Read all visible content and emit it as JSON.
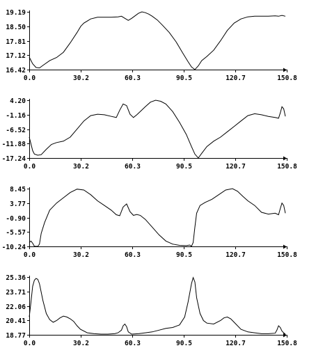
{
  "chart_data": [
    {
      "type": "line",
      "ylim": [
        16.42,
        19.19
      ],
      "y_ticks": [
        "19.19",
        "18.50",
        "17.81",
        "17.12",
        "16.42"
      ],
      "xlim": [
        0,
        150.8
      ],
      "x_ticks": [
        "0.0",
        "30.2",
        "60.3",
        "90.5",
        "120.7",
        "150.8"
      ],
      "colors": {
        "line": "#000000",
        "axis": "#000000"
      },
      "series": [
        {
          "x": [
            0,
            2,
            4,
            6,
            8,
            12,
            16,
            20,
            24,
            28,
            30.2,
            32,
            36,
            40,
            44,
            48,
            52,
            54,
            56,
            58,
            60,
            62,
            64,
            66,
            68,
            70,
            72,
            75,
            78,
            82,
            86,
            90,
            93,
            95,
            97,
            99,
            101,
            104,
            108,
            112,
            116,
            120,
            124,
            128,
            132,
            136,
            140,
            144,
            146,
            148,
            150
          ],
          "y": [
            17.02,
            16.7,
            16.52,
            16.5,
            16.62,
            16.85,
            17.0,
            17.25,
            17.7,
            18.2,
            18.5,
            18.65,
            18.85,
            18.93,
            18.93,
            18.93,
            18.95,
            18.98,
            18.88,
            18.78,
            18.88,
            19.0,
            19.12,
            19.19,
            19.15,
            19.08,
            18.98,
            18.8,
            18.55,
            18.2,
            17.75,
            17.2,
            16.8,
            16.55,
            16.42,
            16.6,
            16.85,
            17.05,
            17.35,
            17.8,
            18.3,
            18.65,
            18.85,
            18.95,
            18.98,
            18.98,
            18.98,
            19.0,
            18.98,
            19.02,
            18.98
          ]
        }
      ]
    },
    {
      "type": "line",
      "ylim": [
        -17.24,
        4.2
      ],
      "y_ticks": [
        "4.20",
        "-1.16",
        "-6.52",
        "-11.88",
        "-17.24"
      ],
      "xlim": [
        0,
        150.8
      ],
      "x_ticks": [
        "0.0",
        "30.2",
        "60.3",
        "90.5",
        "120.7",
        "150.8"
      ],
      "colors": {
        "line": "#000000",
        "axis": "#000000"
      },
      "series": [
        {
          "x": [
            0,
            1,
            2,
            3,
            5,
            7,
            10,
            13,
            16,
            20,
            24,
            28,
            32,
            36,
            40,
            44,
            48,
            51,
            53,
            55,
            57,
            59,
            61,
            63,
            65,
            68,
            71,
            74,
            77,
            80,
            84,
            88,
            92,
            95,
            97,
            99,
            101,
            104,
            108,
            112,
            116,
            120,
            124,
            128,
            132,
            136,
            140,
            144,
            146,
            147,
            148,
            149,
            150
          ],
          "y": [
            -9.5,
            -12.0,
            -14.5,
            -15.8,
            -16.2,
            -16.0,
            -14.0,
            -12.2,
            -11.5,
            -11.0,
            -9.5,
            -6.5,
            -3.5,
            -1.5,
            -1.0,
            -1.2,
            -1.8,
            -2.2,
            0.5,
            2.8,
            2.2,
            -1.0,
            -2.2,
            -1.2,
            0.0,
            1.8,
            3.5,
            4.2,
            3.8,
            2.8,
            0.0,
            -4.0,
            -8.5,
            -13.0,
            -15.8,
            -17.24,
            -15.5,
            -13.0,
            -11.0,
            -9.5,
            -7.5,
            -5.5,
            -3.5,
            -1.5,
            -0.8,
            -1.2,
            -1.8,
            -2.2,
            -2.5,
            -0.5,
            1.8,
            1.0,
            -1.8
          ]
        }
      ]
    },
    {
      "type": "line",
      "ylim": [
        -10.24,
        8.45
      ],
      "y_ticks": [
        "8.45",
        "3.77",
        "-0.90",
        "-5.57",
        "-10.24"
      ],
      "xlim": [
        0,
        150.8
      ],
      "x_ticks": [
        "0.0",
        "30.2",
        "60.3",
        "90.5",
        "120.7",
        "150.8"
      ],
      "colors": {
        "line": "#000000",
        "axis": "#000000"
      },
      "series": [
        {
          "x": [
            0,
            1,
            2,
            3,
            5,
            6,
            7,
            9,
            12,
            16,
            20,
            24,
            28,
            32,
            36,
            40,
            44,
            48,
            51,
            53,
            55,
            57,
            59,
            61,
            63,
            65,
            68,
            72,
            76,
            80,
            84,
            88,
            92,
            94,
            95,
            96,
            97,
            98,
            100,
            103,
            107,
            111,
            115,
            119,
            122,
            125,
            128,
            132,
            136,
            140,
            144,
            146,
            147,
            148,
            149,
            150
          ],
          "y": [
            -9.0,
            -8.5,
            -9.2,
            -10.2,
            -10.24,
            -9.5,
            -6.0,
            -2.5,
            1.5,
            3.8,
            5.5,
            7.2,
            8.3,
            8.0,
            6.5,
            4.5,
            3.0,
            1.5,
            0.0,
            -0.3,
            2.5,
            3.5,
            1.0,
            -0.2,
            0.1,
            -0.2,
            -1.5,
            -4.0,
            -6.5,
            -8.5,
            -9.5,
            -9.9,
            -10.0,
            -9.8,
            -10.2,
            -9.0,
            -4.0,
            0.5,
            3.0,
            4.0,
            5.0,
            6.5,
            8.0,
            8.45,
            7.6,
            6.0,
            4.5,
            3.0,
            0.8,
            0.2,
            0.5,
            0.0,
            2.0,
            3.8,
            3.0,
            0.5
          ]
        }
      ]
    },
    {
      "type": "line",
      "ylim": [
        18.77,
        25.36
      ],
      "y_ticks": [
        "25.36",
        "23.71",
        "22.06",
        "20.41",
        "18.77"
      ],
      "xlim": [
        0,
        150.8
      ],
      "x_ticks": [
        "0.0",
        "30.2",
        "60.3",
        "90.5",
        "120.7",
        "150.8"
      ],
      "colors": {
        "line": "#000000",
        "axis": "#000000"
      },
      "series": [
        {
          "x": [
            0,
            1,
            2,
            3,
            4,
            5,
            6,
            8,
            10,
            12,
            14,
            16,
            18,
            20,
            22,
            24,
            26,
            28,
            30,
            34,
            38,
            42,
            46,
            50,
            52,
            54,
            55,
            56,
            57,
            58,
            60,
            64,
            68,
            72,
            76,
            80,
            84,
            88,
            91,
            93,
            95,
            96,
            97,
            98,
            100,
            102,
            104,
            108,
            112,
            114,
            116,
            118,
            120,
            124,
            128,
            132,
            136,
            140,
            144,
            145,
            146,
            147,
            148,
            149,
            150
          ],
          "y": [
            20.8,
            22.5,
            24.3,
            25.0,
            25.2,
            25.1,
            24.6,
            22.7,
            21.2,
            20.5,
            20.2,
            20.4,
            20.7,
            20.9,
            20.8,
            20.6,
            20.3,
            19.8,
            19.4,
            19.0,
            18.9,
            18.85,
            18.85,
            18.9,
            19.0,
            19.3,
            19.8,
            20.0,
            19.7,
            19.1,
            18.85,
            18.9,
            19.0,
            19.1,
            19.3,
            19.5,
            19.6,
            19.9,
            20.8,
            22.5,
            24.6,
            25.3,
            24.8,
            23.0,
            21.2,
            20.4,
            20.1,
            20.0,
            20.4,
            20.7,
            20.8,
            20.6,
            20.2,
            19.4,
            19.1,
            19.0,
            18.9,
            18.9,
            18.95,
            19.3,
            19.8,
            19.6,
            19.2,
            19.0,
            18.85
          ]
        }
      ]
    }
  ]
}
